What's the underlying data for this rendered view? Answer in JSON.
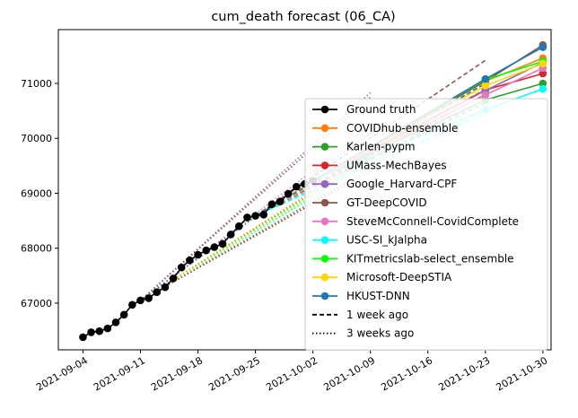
{
  "chart_data": {
    "type": "line",
    "title": "cum_death forecast (06_CA)",
    "xlabel": "",
    "ylabel": "",
    "x_ticks": [
      "2021-09-04",
      "2021-09-11",
      "2021-09-18",
      "2021-09-25",
      "2021-10-02",
      "2021-10-09",
      "2021-10-16",
      "2021-10-23",
      "2021-10-30"
    ],
    "y_ticks": [
      67000,
      68000,
      69000,
      70000,
      71000
    ],
    "xlim": [
      "2021-09-01",
      "2021-10-31"
    ],
    "ylim": [
      66150,
      71980
    ],
    "grid": false,
    "legend_position": "lower-right",
    "ground_truth": {
      "name": "Ground truth",
      "color": "#000000",
      "x": [
        "2021-09-04",
        "2021-09-05",
        "2021-09-06",
        "2021-09-07",
        "2021-09-08",
        "2021-09-09",
        "2021-09-10",
        "2021-09-11",
        "2021-09-12",
        "2021-09-13",
        "2021-09-14",
        "2021-09-15",
        "2021-09-16",
        "2021-09-17",
        "2021-09-18",
        "2021-09-19",
        "2021-09-20",
        "2021-09-21",
        "2021-09-22",
        "2021-09-23",
        "2021-09-24",
        "2021-09-25",
        "2021-09-26",
        "2021-09-27",
        "2021-09-28",
        "2021-09-29",
        "2021-09-30",
        "2021-10-01",
        "2021-10-02"
      ],
      "y": [
        66380,
        66470,
        66490,
        66540,
        66650,
        66790,
        66970,
        67050,
        67090,
        67200,
        67290,
        67450,
        67650,
        67780,
        67880,
        67960,
        68020,
        68080,
        68250,
        68400,
        68560,
        68590,
        68610,
        68800,
        68850,
        68990,
        69120,
        69170,
        69230
      ]
    },
    "series": [
      {
        "name": "COVIDhub-ensemble",
        "color": "#ff7f0e",
        "origin": {
          "x": "2021-10-02",
          "y": 69230
        },
        "x": [
          "2021-10-23",
          "2021-10-30"
        ],
        "y": [
          71040,
          71460
        ],
        "week1": {
          "x": "2021-10-23",
          "y": 71080
        },
        "week3": {
          "x": "2021-10-09",
          "y": 69700
        }
      },
      {
        "name": "Karlen-pypm",
        "color": "#2ca02c",
        "origin": {
          "x": "2021-10-02",
          "y": 69230
        },
        "x": [
          "2021-10-23",
          "2021-10-30"
        ],
        "y": [
          70700,
          71000
        ],
        "week1": {
          "x": "2021-10-23",
          "y": 70650
        },
        "week3": {
          "x": "2021-10-09",
          "y": 69450
        }
      },
      {
        "name": "UMass-MechBayes",
        "color": "#d62728",
        "origin": {
          "x": "2021-10-02",
          "y": 69230
        },
        "x": [
          "2021-10-23",
          "2021-10-30"
        ],
        "y": [
          70880,
          71180
        ],
        "week1": {
          "x": "2021-10-23",
          "y": 70800
        },
        "week3": {
          "x": "2021-10-09",
          "y": 69400
        }
      },
      {
        "name": "Google_Harvard-CPF",
        "color": "#9467bd",
        "origin": {
          "x": "2021-10-02",
          "y": 69230
        },
        "x": [
          "2021-10-23",
          "2021-10-30"
        ],
        "y": [
          70870,
          71380
        ],
        "week1": {
          "x": "2021-10-23",
          "y": 70900
        },
        "week3": {
          "x": "2021-10-09",
          "y": 70830
        }
      },
      {
        "name": "GT-DeepCOVID",
        "color": "#8c564b",
        "origin": {
          "x": "2021-10-02",
          "y": 69230
        },
        "x": [
          "2021-10-23",
          "2021-10-30"
        ],
        "y": [
          71040,
          71700
        ],
        "week1": {
          "x": "2021-10-23",
          "y": 71420
        },
        "week3": {
          "x": "2021-10-09",
          "y": 70750
        }
      },
      {
        "name": "SteveMcConnell-CovidComplete",
        "color": "#e377c2",
        "origin": {
          "x": "2021-10-02",
          "y": 69230
        },
        "x": [
          "2021-10-23",
          "2021-10-30"
        ],
        "y": [
          70790,
          71280
        ],
        "week1": {
          "x": "2021-10-23",
          "y": 70700
        },
        "week3": {
          "x": "2021-10-09",
          "y": 70200
        }
      },
      {
        "name": "USC-SI_kJalpha",
        "color": "#00ffff",
        "origin": {
          "x": "2021-10-02",
          "y": 69230
        },
        "x": [
          "2021-10-23",
          "2021-10-30"
        ],
        "y": [
          70520,
          70900
        ],
        "week1": {
          "x": "2021-10-23",
          "y": 70450
        },
        "week3": {
          "x": "2021-10-09",
          "y": 69550
        }
      },
      {
        "name": "KITmetricslab-select_ensemble",
        "color": "#00ff00",
        "origin": {
          "x": "2021-10-02",
          "y": 69230
        },
        "x": [
          "2021-10-23",
          "2021-10-30"
        ],
        "y": [
          71070,
          71400
        ],
        "week1": {
          "x": "2021-10-23",
          "y": 71000
        },
        "week3": {
          "x": "2021-10-09",
          "y": 69650
        }
      },
      {
        "name": "Microsoft-DeepSTIA",
        "color": "#ffd700",
        "origin": {
          "x": "2021-10-02",
          "y": 69230
        },
        "x": [
          "2021-10-23",
          "2021-10-30"
        ],
        "y": [
          70960,
          71360
        ],
        "week1": {
          "x": "2021-10-23",
          "y": 70900
        },
        "week3": {
          "x": "2021-10-09",
          "y": 69600
        }
      },
      {
        "name": "HKUST-DNN",
        "color": "#1f77b4",
        "origin": {
          "x": "2021-10-02",
          "y": 69230
        },
        "x": [
          "2021-10-23",
          "2021-10-30"
        ],
        "y": [
          71080,
          71660
        ],
        "week1": {
          "x": "2021-10-23",
          "y": 71000
        },
        "week3": {
          "x": "2021-10-09",
          "y": 70100
        }
      }
    ],
    "legend_extra": [
      {
        "label": "1 week ago",
        "style": "dashed"
      },
      {
        "label": "3 weeks ago",
        "style": "dotted"
      }
    ]
  }
}
